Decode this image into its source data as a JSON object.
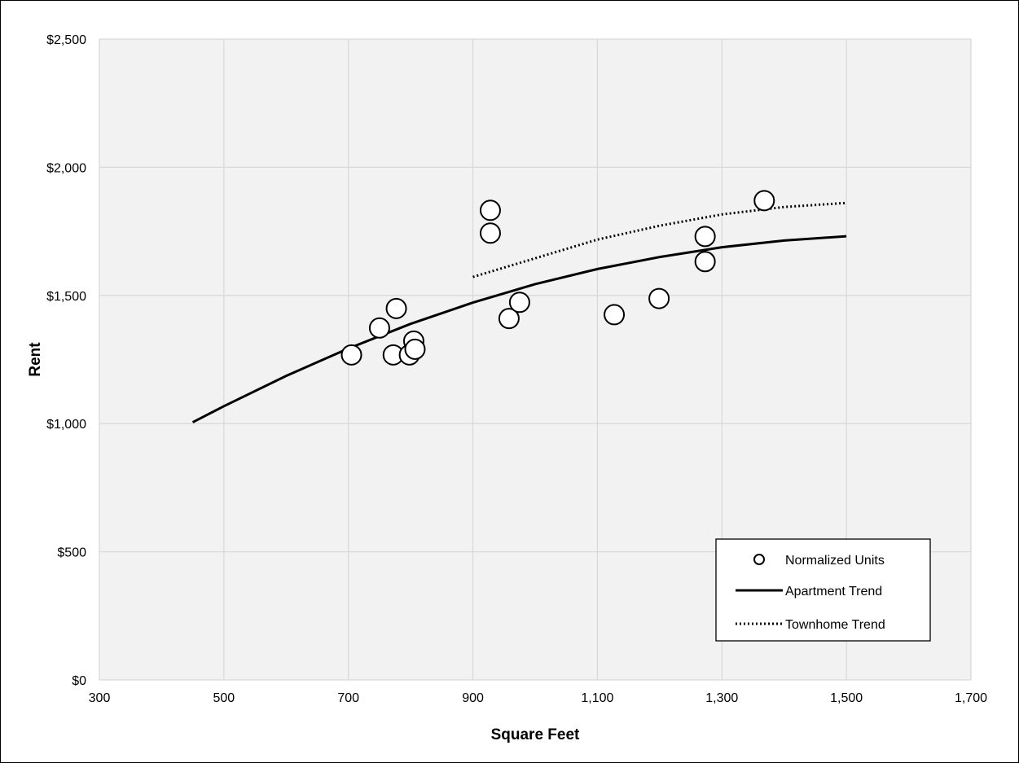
{
  "chart_data": {
    "type": "scatter",
    "title": "",
    "xlabel": "Square Feet",
    "ylabel": "Rent",
    "xlim": [
      300,
      1700
    ],
    "ylim": [
      0,
      2500
    ],
    "x_ticks": [
      300,
      500,
      700,
      900,
      1100,
      1300,
      1500,
      1700
    ],
    "x_tick_labels": [
      "300",
      "500",
      "700",
      "900",
      "1,100",
      "1,300",
      "1,500",
      "1,700"
    ],
    "y_ticks": [
      0,
      500,
      1000,
      1500,
      2000,
      2500
    ],
    "y_tick_labels": [
      "$0",
      "$500",
      "$1,000",
      "$1,500",
      "$2,000",
      "$2,500"
    ],
    "grid": true,
    "legend_position": "bottom-right",
    "series": [
      {
        "name": "Normalized Units",
        "kind": "scatter",
        "points": [
          {
            "x": 705,
            "y": 1268
          },
          {
            "x": 750,
            "y": 1373
          },
          {
            "x": 772,
            "y": 1268
          },
          {
            "x": 777,
            "y": 1449
          },
          {
            "x": 798,
            "y": 1268
          },
          {
            "x": 805,
            "y": 1322
          },
          {
            "x": 807,
            "y": 1290
          },
          {
            "x": 928,
            "y": 1832
          },
          {
            "x": 928,
            "y": 1743
          },
          {
            "x": 958,
            "y": 1410
          },
          {
            "x": 975,
            "y": 1473
          },
          {
            "x": 1127,
            "y": 1425
          },
          {
            "x": 1199,
            "y": 1488
          },
          {
            "x": 1273,
            "y": 1730
          },
          {
            "x": 1273,
            "y": 1632
          },
          {
            "x": 1368,
            "y": 1870
          }
        ]
      },
      {
        "name": "Apartment Trend",
        "kind": "line",
        "style": "solid",
        "points": [
          {
            "x": 450,
            "y": 1005
          },
          {
            "x": 500,
            "y": 1068
          },
          {
            "x": 600,
            "y": 1186
          },
          {
            "x": 700,
            "y": 1293
          },
          {
            "x": 800,
            "y": 1389
          },
          {
            "x": 900,
            "y": 1472
          },
          {
            "x": 1000,
            "y": 1544
          },
          {
            "x": 1100,
            "y": 1603
          },
          {
            "x": 1200,
            "y": 1650
          },
          {
            "x": 1300,
            "y": 1688
          },
          {
            "x": 1400,
            "y": 1714
          },
          {
            "x": 1500,
            "y": 1731
          }
        ]
      },
      {
        "name": "Townhome Trend",
        "kind": "line",
        "style": "dotted",
        "points": [
          {
            "x": 900,
            "y": 1572
          },
          {
            "x": 1000,
            "y": 1645
          },
          {
            "x": 1100,
            "y": 1718
          },
          {
            "x": 1200,
            "y": 1772
          },
          {
            "x": 1300,
            "y": 1816
          },
          {
            "x": 1400,
            "y": 1845
          },
          {
            "x": 1500,
            "y": 1861
          }
        ]
      }
    ],
    "colors": {
      "plot_background": "#f2f2f2",
      "grid": "#d9d9d9",
      "marker_fill": "#ffffff",
      "line": "#000000"
    }
  }
}
